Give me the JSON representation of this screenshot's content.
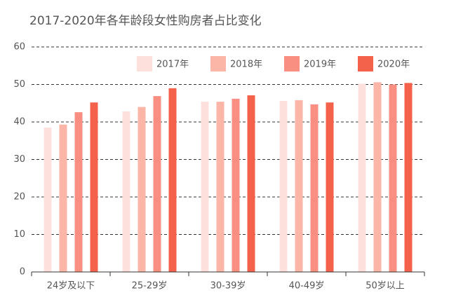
{
  "chart_data": {
    "type": "bar",
    "title": "2017-2020年各年龄段女性购房者占比变化",
    "categories": [
      "24岁及以下",
      "25-29岁",
      "30-39岁",
      "40-49岁",
      "50岁以上"
    ],
    "series": [
      {
        "name": "2017年",
        "color": "#fde0dc",
        "values": [
          38.5,
          42.8,
          45.4,
          45.6,
          50.2
        ]
      },
      {
        "name": "2018年",
        "color": "#fbb6a8",
        "values": [
          39.3,
          44,
          45.4,
          45.8,
          50.6
        ]
      },
      {
        "name": "2019年",
        "color": "#f88f80",
        "values": [
          42.6,
          46.9,
          46.2,
          44.7,
          50
        ]
      },
      {
        "name": "2020年",
        "color": "#f4624c",
        "values": [
          45.2,
          49,
          47.1,
          45.2,
          50.4
        ]
      }
    ],
    "ylim": [
      0,
      60
    ],
    "yticks": [
      0,
      10,
      20,
      30,
      40,
      50,
      60
    ],
    "grid": true
  }
}
